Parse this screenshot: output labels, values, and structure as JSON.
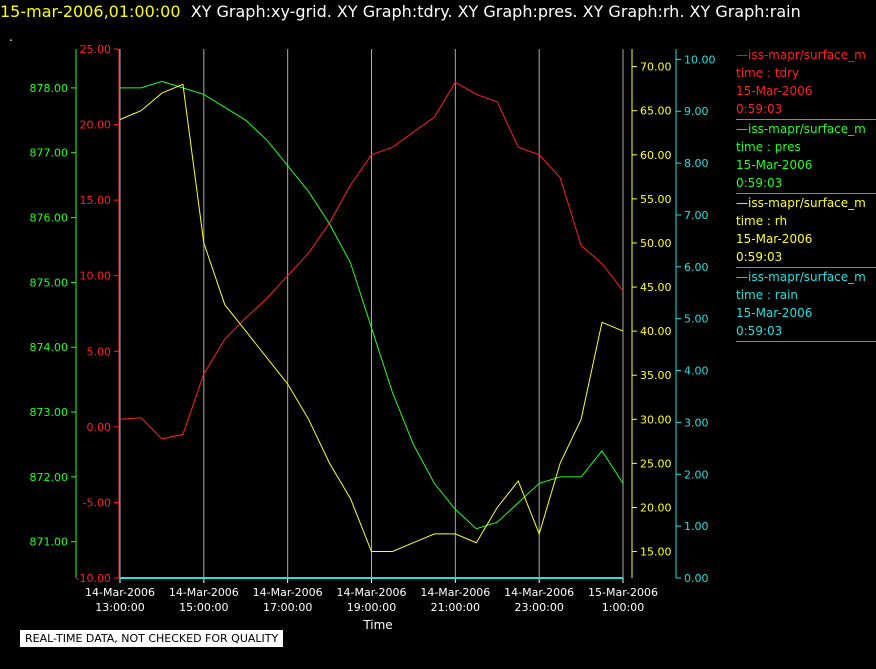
{
  "header": {
    "timestamp": "15-mar-2006,01:00:00",
    "graph_titles": "XY Graph:xy-grid.  XY Graph:tdry.  XY Graph:pres.  XY Graph:rh.  XY Graph:rain",
    "dot": "."
  },
  "disclaimer": "REAL-TIME DATA, NOT CHECKED FOR QUALITY",
  "colors": {
    "tdry": "#ff2020",
    "pres": "#20ff20",
    "rh": "#ffff20",
    "rain": "#20e0e0",
    "grid": "#aaaaaa",
    "bg": "#000000"
  },
  "legend": [
    {
      "line1": "—iss-mapr/surface_m",
      "line2": "time : tdry",
      "line3": "15-Mar-2006",
      "line4": "0:59:03",
      "color": "#ff2020"
    },
    {
      "line1": "—iss-mapr/surface_m",
      "line2": "time : pres",
      "line3": "15-Mar-2006",
      "line4": "0:59:03",
      "color": "#20ff20"
    },
    {
      "line1": "—iss-mapr/surface_m",
      "line2": "time : rh",
      "line3": "15-Mar-2006",
      "line4": "0:59:03",
      "color": "#ffff20"
    },
    {
      "line1": "—iss-mapr/surface_m",
      "line2": "time : rain",
      "line3": "15-Mar-2006",
      "line4": "0:59:03",
      "color": "#20e0e0"
    }
  ],
  "chart_data": {
    "type": "line",
    "xlabel": "Time",
    "x_ticks": [
      {
        "date": "14-Mar-2006",
        "time": "13:00:00"
      },
      {
        "date": "14-Mar-2006",
        "time": "15:00:00"
      },
      {
        "date": "14-Mar-2006",
        "time": "17:00:00"
      },
      {
        "date": "14-Mar-2006",
        "time": "19:00:00"
      },
      {
        "date": "14-Mar-2006",
        "time": "21:00:00"
      },
      {
        "date": "14-Mar-2006",
        "time": "23:00:00"
      },
      {
        "date": "15-Mar-2006",
        "time": "1:00:00"
      }
    ],
    "xlim": [
      "14-Mar-2006 13:00",
      "15-Mar-2006 01:00"
    ],
    "grid": "vertical",
    "axes": {
      "tdry": {
        "ylim": [
          -10,
          25
        ],
        "ticks": [
          "-10.00",
          "-5.00",
          "0.00",
          "5.00",
          "10.00",
          "15.00",
          "20.00",
          "25.00"
        ]
      },
      "pres": {
        "ylim": [
          870.44,
          878.6
        ],
        "ticks": [
          "871.00",
          "872.00",
          "873.00",
          "874.00",
          "875.00",
          "876.00",
          "877.00",
          "878.00"
        ]
      },
      "rh": {
        "ylim": [
          12,
          72
        ],
        "ticks": [
          "15.00",
          "20.00",
          "25.00",
          "30.00",
          "35.00",
          "40.00",
          "45.00",
          "50.00",
          "55.00",
          "60.00",
          "65.00",
          "70.00"
        ]
      },
      "rain": {
        "ylim": [
          0,
          10.2
        ],
        "ticks": [
          "0.00",
          "1.00",
          "2.00",
          "3.00",
          "4.00",
          "5.00",
          "6.00",
          "7.00",
          "8.00",
          "9.00",
          "10.00"
        ]
      }
    },
    "series": [
      {
        "key": "tdry",
        "x": [
          "13:00",
          "13:30",
          "14:00",
          "14:30",
          "15:00",
          "15:30",
          "16:00",
          "16:30",
          "17:00",
          "17:30",
          "18:00",
          "18:30",
          "19:00",
          "19:30",
          "20:00",
          "20:30",
          "21:00",
          "21:30",
          "22:00",
          "22:30",
          "23:00",
          "23:30",
          "00:00",
          "00:30",
          "01:00"
        ],
        "y": [
          0.5,
          0.6,
          -0.8,
          -0.5,
          3.5,
          5.8,
          7.2,
          8.5,
          10,
          11.5,
          13.5,
          16,
          18,
          18.5,
          19.5,
          20.5,
          22.8,
          22,
          21.5,
          18.5,
          18,
          16.5,
          12,
          10.8,
          9
        ]
      },
      {
        "key": "pres",
        "x": [
          "13:00",
          "13:30",
          "14:00",
          "14:30",
          "15:00",
          "15:30",
          "16:00",
          "16:30",
          "17:00",
          "17:30",
          "18:00",
          "18:30",
          "19:00",
          "19:30",
          "20:00",
          "20:30",
          "21:00",
          "21:30",
          "22:00",
          "22:30",
          "23:00",
          "23:30",
          "00:00",
          "00:30",
          "01:00"
        ],
        "y": [
          878,
          878,
          878.1,
          878,
          877.9,
          877.7,
          877.5,
          877.2,
          876.8,
          876.4,
          875.9,
          875.3,
          874.3,
          873.3,
          872.5,
          871.9,
          871.5,
          871.2,
          871.3,
          871.6,
          871.9,
          872,
          872,
          872.4,
          871.9
        ]
      },
      {
        "key": "rh",
        "x": [
          "13:00",
          "13:30",
          "14:00",
          "14:30",
          "15:00",
          "15:30",
          "16:00",
          "16:30",
          "17:00",
          "17:30",
          "18:00",
          "18:30",
          "19:00",
          "19:30",
          "20:00",
          "20:30",
          "21:00",
          "21:30",
          "22:00",
          "22:30",
          "23:00",
          "23:30",
          "00:00",
          "00:30",
          "01:00"
        ],
        "y": [
          64,
          65,
          67,
          68,
          50,
          43,
          40,
          37,
          34,
          30,
          25,
          21,
          15,
          15,
          16,
          17,
          17,
          16,
          20,
          23,
          17,
          25,
          30,
          41,
          40
        ]
      },
      {
        "key": "rain",
        "x": [
          "13:00",
          "01:00"
        ],
        "y": [
          0,
          0
        ]
      }
    ]
  }
}
